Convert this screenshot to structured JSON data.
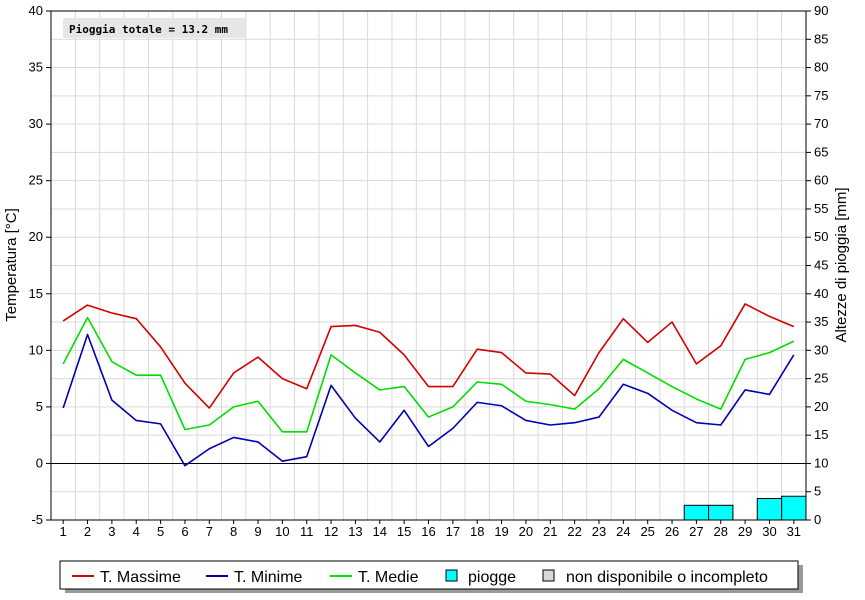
{
  "chart_data": {
    "type": "line",
    "annotation": "Pioggia totale = 13.2 mm",
    "x": [
      1,
      2,
      3,
      4,
      5,
      6,
      7,
      8,
      9,
      10,
      11,
      12,
      13,
      14,
      15,
      16,
      17,
      18,
      19,
      20,
      21,
      22,
      23,
      24,
      25,
      26,
      27,
      28,
      29,
      30,
      31
    ],
    "xticks": [
      "1",
      "2",
      "3",
      "4",
      "5",
      "6",
      "7",
      "8",
      "9",
      "10",
      "11",
      "12",
      "13",
      "14",
      "15",
      "16",
      "17",
      "18",
      "19",
      "20",
      "21",
      "22",
      "23",
      "24",
      "25",
      "26",
      "27",
      "28",
      "29",
      "30",
      "31"
    ],
    "y_left": {
      "label": "Temperatura [°C]",
      "lim": [
        -5,
        40
      ],
      "ticks": [
        "-5",
        "0",
        "5",
        "10",
        "15",
        "20",
        "25",
        "30",
        "35",
        "40"
      ]
    },
    "y_right": {
      "label": "Altezze di pioggia [mm]",
      "lim": [
        0,
        90
      ],
      "ticks": [
        "0",
        "5",
        "10",
        "15",
        "20",
        "25",
        "30",
        "35",
        "40",
        "45",
        "50",
        "55",
        "60",
        "65",
        "70",
        "75",
        "80",
        "85",
        "90"
      ]
    },
    "series": [
      {
        "name": "T. Massime",
        "color": "#d40000",
        "values": [
          12.6,
          14.0,
          13.3,
          12.8,
          10.3,
          7.1,
          4.9,
          8.0,
          9.4,
          7.5,
          6.6,
          12.1,
          12.2,
          11.6,
          9.6,
          6.8,
          6.8,
          10.1,
          9.8,
          8.0,
          7.9,
          6.0,
          9.8,
          12.8,
          10.7,
          12.5,
          8.8,
          10.4,
          14.1,
          13.0,
          12.1
        ]
      },
      {
        "name": "T. Minime",
        "color": "#0000b0",
        "values": [
          4.9,
          11.4,
          5.6,
          3.8,
          3.5,
          -0.2,
          1.3,
          2.3,
          1.9,
          0.2,
          0.6,
          6.9,
          4.0,
          1.9,
          4.7,
          1.5,
          3.1,
          5.4,
          5.1,
          3.8,
          3.4,
          3.6,
          4.1,
          7.0,
          6.2,
          4.7,
          3.6,
          3.4,
          6.5,
          6.1,
          9.6
        ]
      },
      {
        "name": "T. Medie",
        "color": "#00dd00",
        "values": [
          8.8,
          12.9,
          9.0,
          7.8,
          7.8,
          3.0,
          3.4,
          5.0,
          5.5,
          2.8,
          2.8,
          9.6,
          8.0,
          6.5,
          6.8,
          4.1,
          5.0,
          7.2,
          7.0,
          5.5,
          5.2,
          4.8,
          6.6,
          9.2,
          8.0,
          6.8,
          5.7,
          4.8,
          9.2,
          9.8,
          10.8
        ]
      }
    ],
    "rain": {
      "name": "piogge",
      "color": "#00ffff",
      "days": [
        27,
        28,
        30,
        31
      ],
      "values": [
        2.6,
        2.6,
        3.8,
        4.2
      ]
    },
    "legend": {
      "placement": "bottom",
      "entries": [
        "T. Massime",
        "T. Minime",
        "T. Medie",
        "piogge",
        "non disponibile o incompleto"
      ]
    },
    "grid": true
  }
}
